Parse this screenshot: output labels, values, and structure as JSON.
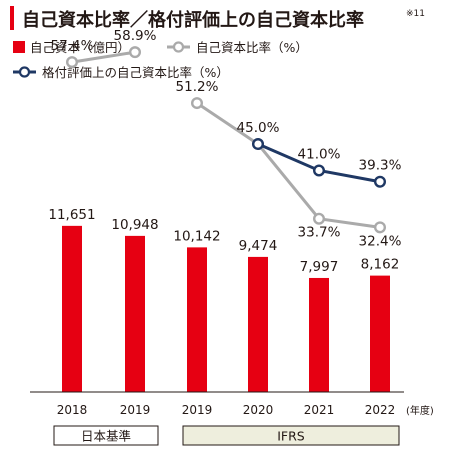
{
  "chart_data": {
    "type": "bar",
    "title": "自己資本比率／格付評価上の自己資本比率",
    "title_note": "※11",
    "categories": [
      "2018",
      "2019",
      "2019",
      "2020",
      "2021",
      "2022"
    ],
    "x_unit": "(年度)",
    "series": [
      {
        "name": "自己資本（億円）",
        "kind": "bar",
        "values": [
          11651,
          10948,
          10142,
          9474,
          7997,
          8162
        ],
        "labels": [
          "11,651",
          "10,948",
          "10,142",
          "9,474",
          "7,997",
          "8,162"
        ],
        "color": "#e60012"
      },
      {
        "name": "自己資本比率（%）",
        "kind": "line",
        "values": [
          57.4,
          58.9,
          51.2,
          45.0,
          33.7,
          32.4
        ],
        "labels": [
          "57.4%",
          "58.9%",
          "51.2%",
          "45.0%",
          "33.7%",
          "32.4%"
        ],
        "segments": [
          [
            0,
            1
          ],
          [
            2,
            5
          ]
        ],
        "color": "#aaaaaa"
      },
      {
        "name": "格付評価上の自己資本比率（%）",
        "kind": "line",
        "values": [
          null,
          null,
          null,
          45.0,
          41.0,
          39.3
        ],
        "labels": [
          null,
          null,
          null,
          null,
          "41.0%",
          "39.3%"
        ],
        "segments": [
          [
            3,
            5
          ]
        ],
        "color": "#1f3864"
      }
    ],
    "groups": [
      {
        "label": "日本基準",
        "from": 0,
        "to": 1
      },
      {
        "label": "IFRS",
        "from": 2,
        "to": 5
      }
    ],
    "grid": false
  }
}
